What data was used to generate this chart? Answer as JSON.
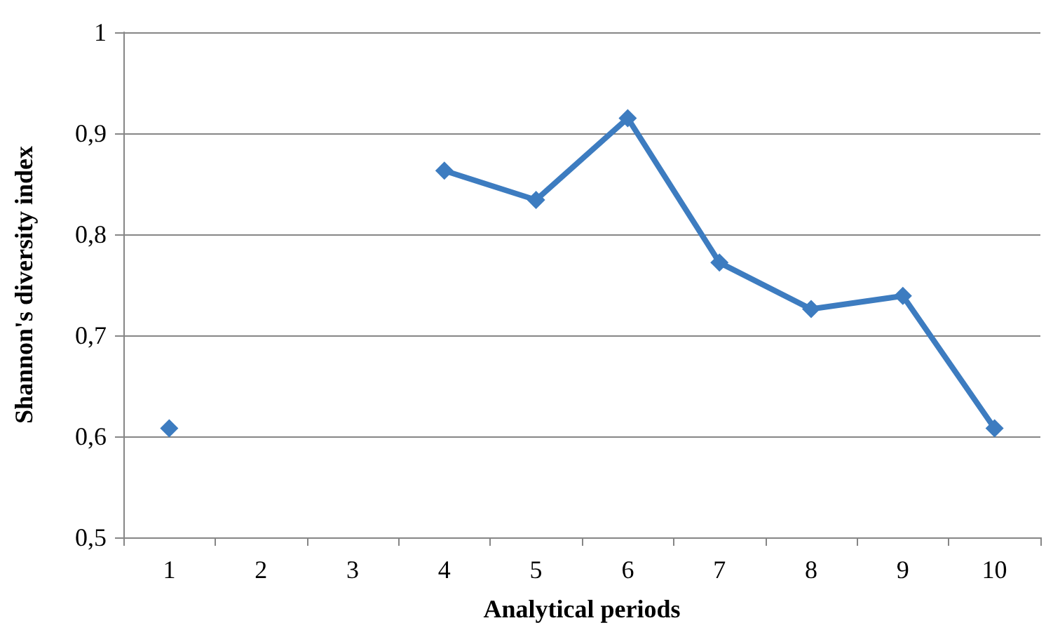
{
  "chart_data": {
    "type": "line",
    "xlabel": "Analytical periods",
    "ylabel": "Shannon's diversity index",
    "categories": [
      "1",
      "2",
      "3",
      "4",
      "5",
      "6",
      "7",
      "8",
      "9",
      "10"
    ],
    "series": [
      {
        "color": "#3d7cc0",
        "values": [
          0.608,
          null,
          null,
          0.863,
          0.834,
          0.915,
          0.772,
          0.726,
          0.739,
          0.608
        ]
      }
    ],
    "ylim": [
      0.5,
      1
    ],
    "yticks": [
      {
        "value": 0.5,
        "label": "0,5"
      },
      {
        "value": 0.6,
        "label": "0,6"
      },
      {
        "value": 0.7,
        "label": "0,7"
      },
      {
        "value": 0.8,
        "label": "0,8"
      },
      {
        "value": 0.9,
        "label": "0,9"
      },
      1
    ],
    "grid": "y",
    "marker": "diamond",
    "line_style": "solid"
  }
}
